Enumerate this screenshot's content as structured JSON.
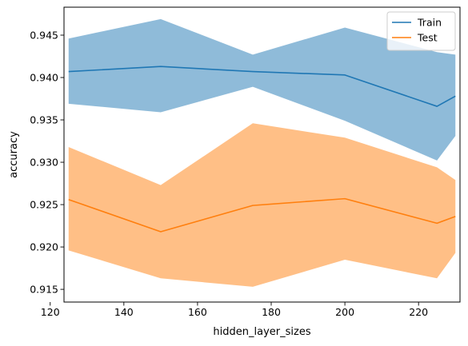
{
  "chart_data": {
    "type": "line",
    "title": "",
    "xlabel": "hidden_layer_sizes",
    "ylabel": "accuracy",
    "xlim": [
      123.75,
      231.25
    ],
    "ylim": [
      0.9135,
      0.9483
    ],
    "xticks": [
      120,
      140,
      160,
      180,
      200,
      220
    ],
    "yticks": [
      0.915,
      0.92,
      0.925,
      0.93,
      0.935,
      0.94,
      0.945
    ],
    "ytick_labels": [
      "0.915",
      "0.920",
      "0.925",
      "0.930",
      "0.935",
      "0.940",
      "0.945"
    ],
    "grid": false,
    "legend_position": "top-right",
    "x": [
      125,
      150,
      175,
      200,
      225,
      230
    ],
    "series": [
      {
        "name": "Train",
        "color": "#1f77b4",
        "band_color": "#1f77b4",
        "values": [
          0.9407,
          0.9413,
          0.9407,
          0.9403,
          0.9366,
          0.9378
        ],
        "upper": [
          0.9446,
          0.9469,
          0.9427,
          0.9459,
          0.943,
          0.9427
        ],
        "lower": [
          0.9369,
          0.9359,
          0.9389,
          0.9349,
          0.9302,
          0.9331
        ]
      },
      {
        "name": "Test",
        "color": "#ff7f0e",
        "band_color": "#ff7f0e",
        "values": [
          0.9256,
          0.9218,
          0.9249,
          0.9257,
          0.9228,
          0.9236
        ],
        "upper": [
          0.9318,
          0.9273,
          0.9346,
          0.9329,
          0.9294,
          0.9279
        ],
        "lower": [
          0.9196,
          0.9163,
          0.9153,
          0.9185,
          0.9163,
          0.9193
        ]
      }
    ]
  }
}
